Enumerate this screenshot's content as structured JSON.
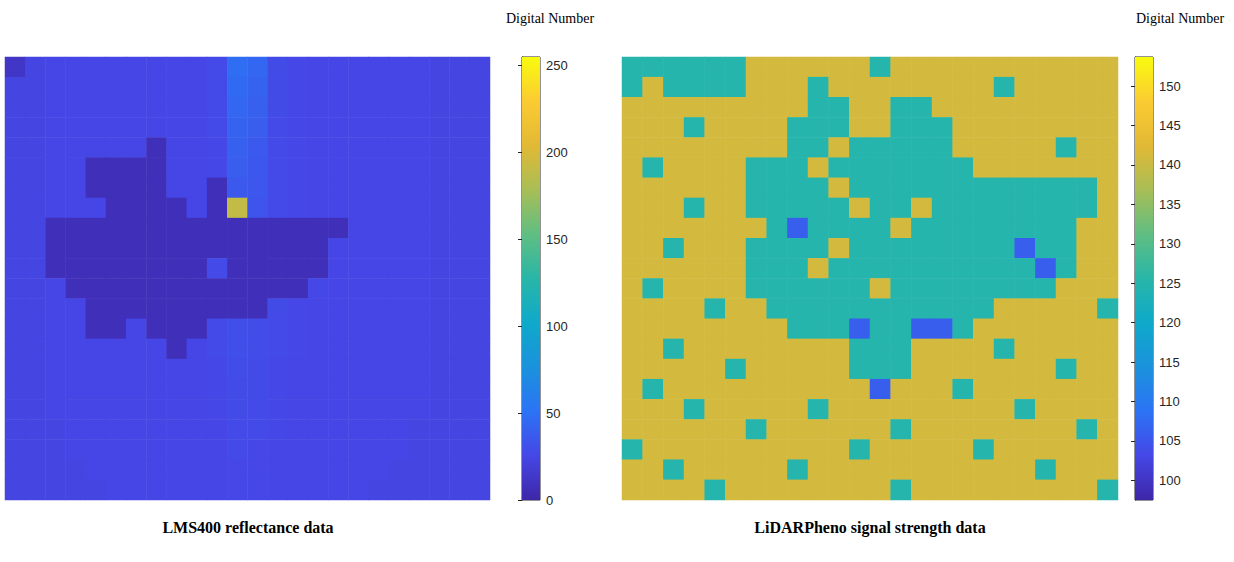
{
  "chart_data": [
    {
      "type": "heatmap",
      "title": "LMS400 reflectance data",
      "tick_labels": false,
      "colorbar": {
        "title": "Digital Number",
        "range": [
          0,
          255
        ],
        "ticks": [
          0,
          50,
          100,
          150,
          200,
          250
        ]
      },
      "cells": [
        [
          12,
          24,
          25,
          25,
          25,
          25,
          25,
          25,
          25,
          25,
          27,
          48,
          44,
          28,
          26,
          25,
          25,
          25,
          25,
          25,
          25,
          24,
          24,
          24
        ],
        [
          24,
          24,
          25,
          25,
          25,
          25,
          25,
          25,
          25,
          25,
          27,
          46,
          42,
          28,
          26,
          25,
          25,
          25,
          25,
          25,
          25,
          24,
          24,
          24
        ],
        [
          24,
          24,
          25,
          25,
          25,
          25,
          25,
          25,
          25,
          25,
          27,
          44,
          40,
          28,
          26,
          25,
          25,
          25,
          25,
          25,
          25,
          24,
          24,
          24
        ],
        [
          24,
          24,
          25,
          25,
          25,
          25,
          25,
          25,
          25,
          25,
          27,
          42,
          38,
          27,
          26,
          25,
          25,
          25,
          25,
          25,
          25,
          24,
          24,
          24
        ],
        [
          24,
          24,
          25,
          25,
          25,
          25,
          25,
          7,
          25,
          25,
          26,
          40,
          36,
          27,
          26,
          25,
          25,
          25,
          25,
          25,
          25,
          24,
          24,
          24
        ],
        [
          24,
          24,
          25,
          25,
          7,
          7,
          7,
          7,
          25,
          25,
          26,
          38,
          35,
          27,
          26,
          25,
          25,
          25,
          25,
          25,
          25,
          24,
          24,
          24
        ],
        [
          24,
          24,
          25,
          25,
          7,
          7,
          7,
          7,
          25,
          25,
          7,
          36,
          34,
          27,
          26,
          25,
          25,
          25,
          25,
          25,
          25,
          24,
          24,
          24
        ],
        [
          24,
          24,
          25,
          25,
          25,
          7,
          7,
          7,
          7,
          25,
          7,
          190,
          33,
          27,
          26,
          25,
          25,
          25,
          25,
          25,
          25,
          24,
          24,
          24
        ],
        [
          24,
          24,
          7,
          7,
          7,
          7,
          7,
          7,
          7,
          7,
          7,
          7,
          7,
          7,
          7,
          7,
          7,
          25,
          25,
          25,
          25,
          24,
          24,
          24
        ],
        [
          24,
          24,
          7,
          7,
          7,
          7,
          7,
          7,
          7,
          7,
          7,
          7,
          7,
          7,
          7,
          7,
          25,
          25,
          25,
          25,
          25,
          24,
          24,
          24
        ],
        [
          24,
          24,
          7,
          7,
          7,
          7,
          7,
          7,
          7,
          7,
          27,
          7,
          7,
          7,
          7,
          7,
          25,
          25,
          25,
          25,
          25,
          24,
          24,
          24
        ],
        [
          24,
          24,
          25,
          7,
          7,
          7,
          7,
          7,
          7,
          7,
          7,
          7,
          7,
          7,
          7,
          26,
          25,
          25,
          25,
          25,
          25,
          24,
          24,
          24
        ],
        [
          24,
          24,
          25,
          25,
          7,
          7,
          7,
          7,
          7,
          7,
          7,
          7,
          7,
          28,
          26,
          25,
          25,
          25,
          25,
          25,
          25,
          24,
          24,
          24
        ],
        [
          24,
          24,
          25,
          25,
          7,
          7,
          25,
          7,
          7,
          7,
          27,
          30,
          29,
          27,
          26,
          25,
          25,
          25,
          25,
          25,
          25,
          24,
          24,
          24
        ],
        [
          24,
          24,
          25,
          25,
          25,
          25,
          25,
          25,
          7,
          25,
          27,
          30,
          29,
          27,
          26,
          25,
          25,
          25,
          25,
          25,
          25,
          24,
          24,
          24
        ],
        [
          24,
          24,
          25,
          25,
          25,
          25,
          25,
          25,
          25,
          25,
          26,
          29,
          28,
          26,
          25,
          25,
          25,
          25,
          25,
          25,
          25,
          24,
          24,
          24
        ],
        [
          24,
          24,
          25,
          25,
          25,
          25,
          25,
          25,
          25,
          25,
          26,
          28,
          28,
          26,
          25,
          25,
          25,
          25,
          25,
          25,
          25,
          24,
          24,
          24
        ],
        [
          24,
          24,
          25,
          25,
          25,
          25,
          25,
          25,
          25,
          25,
          26,
          28,
          27,
          26,
          25,
          25,
          25,
          25,
          25,
          25,
          25,
          24,
          24,
          24
        ],
        [
          24,
          24,
          24,
          25,
          25,
          25,
          25,
          25,
          25,
          25,
          25,
          27,
          27,
          26,
          25,
          25,
          25,
          25,
          25,
          25,
          24,
          24,
          24,
          24
        ],
        [
          24,
          24,
          24,
          25,
          25,
          25,
          25,
          25,
          25,
          25,
          25,
          27,
          26,
          25,
          25,
          25,
          25,
          25,
          25,
          25,
          24,
          24,
          24,
          24
        ],
        [
          24,
          24,
          24,
          24,
          25,
          25,
          25,
          25,
          25,
          25,
          25,
          26,
          26,
          25,
          25,
          25,
          25,
          25,
          25,
          24,
          24,
          24,
          24,
          24
        ],
        [
          24,
          24,
          24,
          24,
          24,
          25,
          25,
          25,
          25,
          25,
          25,
          26,
          26,
          25,
          25,
          25,
          25,
          25,
          24,
          24,
          24,
          24,
          24,
          24
        ]
      ]
    },
    {
      "type": "heatmap",
      "title": "LiDARPheno signal strength data",
      "tick_labels": false,
      "colorbar": {
        "title": "Digital Number",
        "range": [
          97.5,
          153.7
        ],
        "ticks": [
          100,
          105,
          110,
          115,
          120,
          125,
          130,
          135,
          140,
          145,
          150
        ]
      },
      "cells": [
        [
          125,
          125,
          125,
          125,
          125,
          125,
          141,
          141,
          141,
          141,
          141,
          141,
          125,
          141,
          141,
          141,
          141,
          141,
          141,
          141,
          141,
          141,
          141,
          141
        ],
        [
          125,
          141,
          125,
          125,
          125,
          125,
          141,
          141,
          141,
          125,
          141,
          141,
          141,
          141,
          141,
          141,
          141,
          141,
          125,
          141,
          141,
          141,
          141,
          141
        ],
        [
          141,
          141,
          141,
          141,
          141,
          141,
          141,
          141,
          141,
          125,
          125,
          141,
          141,
          125,
          125,
          141,
          141,
          141,
          141,
          141,
          141,
          141,
          141,
          141
        ],
        [
          141,
          141,
          141,
          125,
          141,
          141,
          141,
          141,
          125,
          125,
          125,
          141,
          141,
          125,
          125,
          125,
          141,
          141,
          141,
          141,
          141,
          141,
          141,
          141
        ],
        [
          141,
          141,
          141,
          141,
          141,
          141,
          141,
          141,
          125,
          125,
          141,
          125,
          125,
          125,
          125,
          125,
          141,
          141,
          141,
          141,
          141,
          125,
          141,
          141
        ],
        [
          141,
          125,
          141,
          141,
          141,
          141,
          125,
          125,
          125,
          141,
          125,
          125,
          125,
          125,
          125,
          125,
          125,
          141,
          141,
          141,
          141,
          141,
          141,
          141
        ],
        [
          141,
          141,
          141,
          141,
          141,
          141,
          125,
          125,
          125,
          125,
          141,
          125,
          125,
          125,
          125,
          125,
          125,
          125,
          125,
          125,
          125,
          125,
          125,
          141
        ],
        [
          141,
          141,
          141,
          125,
          141,
          141,
          125,
          125,
          125,
          125,
          125,
          141,
          125,
          125,
          141,
          125,
          125,
          125,
          125,
          125,
          125,
          125,
          125,
          141
        ],
        [
          141,
          141,
          141,
          141,
          141,
          141,
          141,
          125,
          106,
          125,
          125,
          125,
          125,
          141,
          125,
          125,
          125,
          125,
          125,
          125,
          125,
          125,
          141,
          141
        ],
        [
          141,
          141,
          125,
          141,
          141,
          141,
          125,
          125,
          125,
          125,
          141,
          125,
          125,
          125,
          125,
          125,
          125,
          125,
          125,
          106,
          125,
          125,
          141,
          141
        ],
        [
          141,
          141,
          141,
          141,
          141,
          141,
          125,
          125,
          125,
          141,
          125,
          125,
          125,
          125,
          125,
          125,
          125,
          125,
          125,
          125,
          106,
          125,
          141,
          141
        ],
        [
          141,
          125,
          141,
          141,
          141,
          141,
          125,
          125,
          125,
          125,
          125,
          125,
          141,
          125,
          125,
          125,
          125,
          125,
          125,
          125,
          125,
          141,
          141,
          141
        ],
        [
          141,
          141,
          141,
          141,
          125,
          141,
          141,
          125,
          125,
          125,
          125,
          125,
          125,
          125,
          125,
          125,
          125,
          125,
          141,
          141,
          141,
          141,
          141,
          125
        ],
        [
          141,
          141,
          141,
          141,
          141,
          141,
          141,
          141,
          125,
          125,
          125,
          106,
          125,
          125,
          106,
          106,
          125,
          141,
          141,
          141,
          141,
          141,
          141,
          141
        ],
        [
          141,
          141,
          125,
          141,
          141,
          141,
          141,
          141,
          141,
          141,
          141,
          125,
          125,
          125,
          141,
          141,
          141,
          141,
          125,
          141,
          141,
          141,
          141,
          141
        ],
        [
          141,
          141,
          141,
          141,
          141,
          125,
          141,
          141,
          141,
          141,
          141,
          125,
          125,
          125,
          141,
          141,
          141,
          141,
          141,
          141,
          141,
          125,
          141,
          141
        ],
        [
          141,
          125,
          141,
          141,
          141,
          141,
          141,
          141,
          141,
          141,
          141,
          141,
          106,
          141,
          141,
          141,
          125,
          141,
          141,
          141,
          141,
          141,
          141,
          141
        ],
        [
          141,
          141,
          141,
          125,
          141,
          141,
          141,
          141,
          141,
          125,
          141,
          141,
          141,
          141,
          141,
          141,
          141,
          141,
          141,
          125,
          141,
          141,
          141,
          141
        ],
        [
          141,
          141,
          141,
          141,
          141,
          141,
          125,
          141,
          141,
          141,
          141,
          141,
          141,
          125,
          141,
          141,
          141,
          141,
          141,
          141,
          141,
          141,
          125,
          141
        ],
        [
          125,
          141,
          141,
          141,
          141,
          141,
          141,
          141,
          141,
          141,
          141,
          125,
          141,
          141,
          141,
          141,
          141,
          125,
          141,
          141,
          141,
          141,
          141,
          141
        ],
        [
          141,
          141,
          125,
          141,
          141,
          141,
          141,
          141,
          125,
          141,
          141,
          141,
          141,
          141,
          141,
          141,
          141,
          141,
          141,
          141,
          125,
          141,
          141,
          141
        ],
        [
          141,
          141,
          141,
          141,
          125,
          141,
          141,
          141,
          141,
          141,
          141,
          141,
          141,
          125,
          141,
          141,
          141,
          141,
          141,
          141,
          141,
          141,
          141,
          125
        ]
      ]
    }
  ]
}
